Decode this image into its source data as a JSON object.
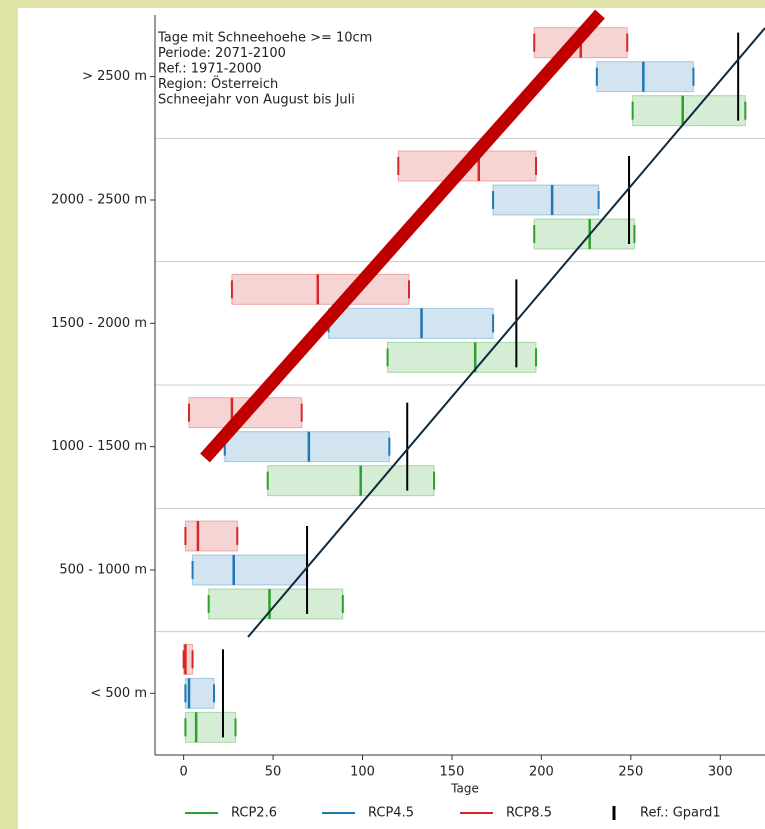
{
  "chart_data": {
    "type": "range_bar",
    "annotation": [
      "Tage mit Schneehoehe >= 10cm",
      "Periode: 2071-2100",
      "Ref.: 1971-2000",
      "Region: Österreich",
      "Schneejahr von August bis Juli"
    ],
    "x_label": "Tage",
    "categories": [
      "> 2500 m",
      "2000 - 2500 m",
      "1500 - 2000 m",
      "1000 - 1500 m",
      "500 - 1000 m",
      "< 500 m"
    ],
    "series": [
      {
        "name": "RCP2.6",
        "color": "#2ca02c",
        "low": [
          251,
          196,
          114,
          47,
          14,
          1
        ],
        "high": [
          314,
          252,
          197,
          140,
          89,
          29
        ],
        "values": [
          279,
          227,
          163,
          99,
          48,
          7
        ]
      },
      {
        "name": "RCP4.5",
        "color": "#1f77b4",
        "low": [
          231,
          173,
          81,
          23,
          5,
          1
        ],
        "high": [
          285,
          232,
          173,
          115,
          69,
          17
        ],
        "values": [
          257,
          206,
          133,
          70,
          28,
          3
        ]
      },
      {
        "name": "RCP8.5",
        "color": "#d62728",
        "low": [
          196,
          120,
          27,
          3,
          1,
          0
        ],
        "high": [
          248,
          197,
          126,
          66,
          30,
          5
        ],
        "values": [
          222,
          165,
          75,
          27,
          8,
          1
        ]
      },
      {
        "name": "Ref.: Gpard1",
        "color": "#000000",
        "values": [
          310,
          249,
          186,
          125,
          69,
          22
        ]
      }
    ],
    "xlim": [
      -16,
      325
    ],
    "xticks": [
      0,
      50,
      100,
      150,
      200,
      250,
      300
    ]
  }
}
